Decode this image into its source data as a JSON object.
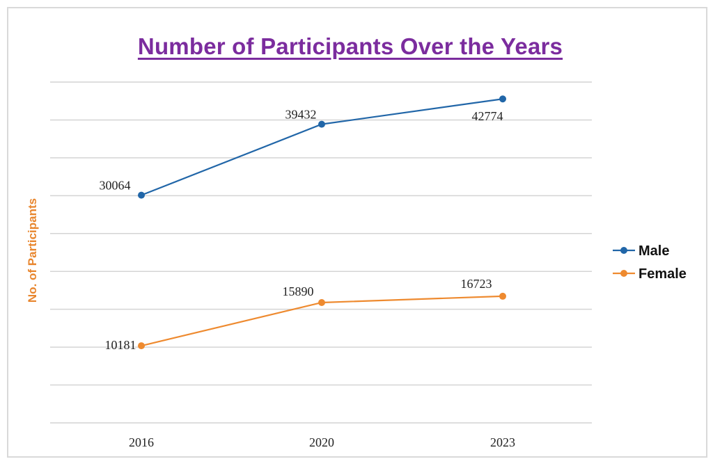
{
  "chart_data": {
    "type": "line",
    "title": "Number of Participants Over the Years",
    "xlabel": "",
    "ylabel": "No. of Participants",
    "categories": [
      "2016",
      "2020",
      "2023"
    ],
    "ylim": [
      0,
      45000
    ],
    "grid": true,
    "legend_position": "right",
    "series": [
      {
        "name": "Male",
        "values": [
          30064,
          39432,
          42774
        ],
        "color": "#2166a8"
      },
      {
        "name": "Female",
        "values": [
          10181,
          15890,
          16723
        ],
        "color": "#ee8a2f"
      }
    ]
  }
}
